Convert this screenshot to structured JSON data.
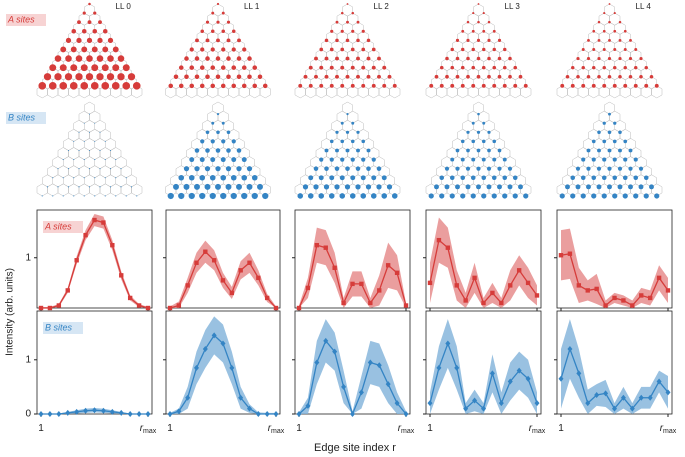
{
  "chart_data": {
    "type": "line",
    "levels": [
      "LL 0",
      "LL 1",
      "LL 2",
      "LL 3",
      "LL 4"
    ],
    "ylabel": "Intensity (arb. units)",
    "xlabel": "Edge site index r",
    "x": [
      1,
      2,
      3,
      4,
      5,
      6,
      7,
      8,
      9,
      10,
      11,
      12,
      13
    ],
    "xlim": [
      1,
      13
    ],
    "xticks": [
      {
        "value": 1,
        "label": "1"
      },
      {
        "value": 13,
        "label": "r",
        "subscript": "max"
      }
    ],
    "rows": [
      {
        "label": "A sites",
        "color": "#d63c3a",
        "band_color": "#e58686",
        "marker": "square",
        "ylim": [
          0,
          1.95
        ],
        "yticks": [
          1
        ],
        "lattice": [
          [
            0.25,
            0.35,
            0.45,
            0.55,
            0.65,
            0.75,
            0.85,
            0.9,
            0.95,
            1.0
          ],
          [
            0.2,
            0.3,
            0.35,
            0.4,
            0.45,
            0.5,
            0.55,
            0.55,
            0.55,
            0.55
          ],
          [
            0.15,
            0.25,
            0.3,
            0.35,
            0.4,
            0.42,
            0.45,
            0.45,
            0.45,
            0.45
          ],
          [
            0.15,
            0.2,
            0.25,
            0.3,
            0.35,
            0.38,
            0.4,
            0.4,
            0.42,
            0.45
          ],
          [
            0.15,
            0.2,
            0.25,
            0.28,
            0.3,
            0.32,
            0.35,
            0.38,
            0.4,
            0.45
          ]
        ],
        "panels": [
          {
            "values": [
              0,
              0,
              0.05,
              0.35,
              0.95,
              1.45,
              1.75,
              1.7,
              1.25,
              0.65,
              0.2,
              0.05,
              0
            ],
            "errors": [
              0.02,
              0.02,
              0.03,
              0.05,
              0.08,
              0.1,
              0.12,
              0.12,
              0.1,
              0.08,
              0.05,
              0.03,
              0.02
            ]
          },
          {
            "values": [
              0,
              0.05,
              0.45,
              0.9,
              1.12,
              0.95,
              0.55,
              0.3,
              0.75,
              0.9,
              0.6,
              0.2,
              0
            ],
            "errors": [
              0.03,
              0.08,
              0.15,
              0.2,
              0.22,
              0.2,
              0.15,
              0.12,
              0.18,
              0.2,
              0.15,
              0.08,
              0.03
            ]
          },
          {
            "values": [
              0,
              0.4,
              1.25,
              1.2,
              0.8,
              0.1,
              0.48,
              0.48,
              0.1,
              0.35,
              0.85,
              0.7,
              0.05
            ],
            "errors": [
              0.05,
              0.2,
              0.35,
              0.35,
              0.3,
              0.1,
              0.25,
              0.25,
              0.1,
              0.3,
              0.45,
              0.35,
              0.05
            ]
          },
          {
            "values": [
              0.5,
              1.35,
              1.2,
              0.45,
              0.15,
              0.6,
              0.1,
              0.3,
              0.1,
              0.45,
              0.75,
              0.5,
              0.25
            ],
            "errors": [
              0.4,
              0.45,
              0.4,
              0.3,
              0.15,
              0.3,
              0.1,
              0.2,
              0.1,
              0.3,
              0.3,
              0.3,
              0.2
            ]
          },
          {
            "values": [
              1.05,
              1.08,
              0.45,
              0.35,
              0.38,
              0.05,
              0.2,
              0.15,
              0.05,
              0.25,
              0.2,
              0.6,
              0.35
            ],
            "errors": [
              0.5,
              0.5,
              0.35,
              0.2,
              0.3,
              0.1,
              0.1,
              0.1,
              0.1,
              0.15,
              0.15,
              0.25,
              0.25
            ]
          }
        ]
      },
      {
        "label": "B sites",
        "color": "#3484c4",
        "band_color": "#7fb1d9",
        "marker": "diamond",
        "ylim": [
          0,
          1.9
        ],
        "yticks": [
          0,
          1
        ],
        "lattice": [
          [
            0.02,
            0.02,
            0.03,
            0.03,
            0.04,
            0.04,
            0.05,
            0.05,
            0.05,
            0.05
          ],
          [
            0.2,
            0.3,
            0.4,
            0.5,
            0.55,
            0.6,
            0.65,
            0.7,
            0.75,
            0.8
          ],
          [
            0.2,
            0.3,
            0.35,
            0.4,
            0.45,
            0.5,
            0.55,
            0.6,
            0.65,
            0.7
          ],
          [
            0.25,
            0.3,
            0.35,
            0.4,
            0.42,
            0.45,
            0.5,
            0.55,
            0.6,
            0.65
          ],
          [
            0.3,
            0.35,
            0.4,
            0.42,
            0.45,
            0.48,
            0.5,
            0.55,
            0.6,
            0.65
          ]
        ],
        "panels": [
          {
            "values": [
              0,
              0,
              0,
              0.02,
              0.04,
              0.06,
              0.07,
              0.06,
              0.04,
              0.02,
              0,
              0,
              0
            ],
            "errors": [
              0.01,
              0.01,
              0.01,
              0.02,
              0.03,
              0.04,
              0.04,
              0.04,
              0.03,
              0.02,
              0.01,
              0.01,
              0.01
            ]
          },
          {
            "values": [
              0,
              0.05,
              0.3,
              0.85,
              1.2,
              1.45,
              1.3,
              0.85,
              0.3,
              0.1,
              0,
              0,
              0
            ],
            "errors": [
              0.02,
              0.05,
              0.2,
              0.3,
              0.35,
              0.35,
              0.35,
              0.3,
              0.2,
              0.08,
              0.03,
              0.02,
              0.02
            ]
          },
          {
            "values": [
              0,
              0.15,
              0.95,
              1.35,
              1.15,
              0.5,
              0,
              0.4,
              0.95,
              0.9,
              0.55,
              0.2,
              0
            ],
            "errors": [
              0.03,
              0.15,
              0.4,
              0.4,
              0.35,
              0.3,
              0.05,
              0.3,
              0.4,
              0.4,
              0.35,
              0.2,
              0.05
            ]
          },
          {
            "values": [
              0.2,
              0.85,
              1.3,
              0.85,
              0.1,
              0.25,
              0.1,
              0.75,
              0.2,
              0.6,
              0.8,
              0.65,
              0.2
            ],
            "errors": [
              0.2,
              0.4,
              0.45,
              0.4,
              0.1,
              0.2,
              0.1,
              0.35,
              0.2,
              0.35,
              0.35,
              0.35,
              0.2
            ]
          },
          {
            "values": [
              0.65,
              1.2,
              0.75,
              0.2,
              0.35,
              0.38,
              0.1,
              0.3,
              0.1,
              0.3,
              0.3,
              0.6,
              0.4
            ],
            "errors": [
              0.55,
              0.55,
              0.45,
              0.25,
              0.2,
              0.25,
              0.1,
              0.2,
              0.1,
              0.2,
              0.2,
              0.2,
              0.3
            ]
          }
        ]
      }
    ]
  }
}
